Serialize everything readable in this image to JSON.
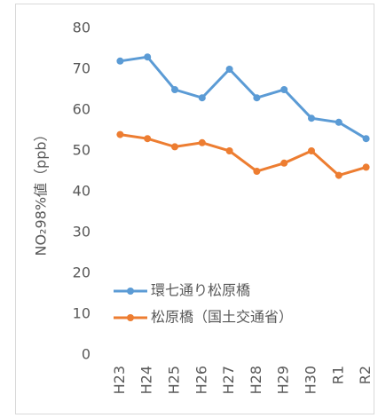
{
  "chart_data": {
    "type": "line",
    "y_label": "NO₂98%値（ppb）",
    "categories": [
      "H23",
      "H24",
      "H25",
      "H26",
      "H27",
      "H28",
      "H29",
      "H30",
      "R1",
      "R2"
    ],
    "series": [
      {
        "name": "環七通り松原橋",
        "color": "#5b9bd5",
        "values": [
          72,
          73,
          65,
          63,
          70,
          63,
          65,
          58,
          57,
          53
        ]
      },
      {
        "name": "松原橋（国土交通省）",
        "color": "#ed7d31",
        "values": [
          54,
          53,
          51,
          52,
          50,
          45,
          47,
          50,
          44,
          46
        ]
      }
    ],
    "ylim": [
      0,
      80
    ],
    "yticks": [
      0,
      10,
      20,
      30,
      40,
      50,
      60,
      70,
      80
    ],
    "grid": false
  }
}
